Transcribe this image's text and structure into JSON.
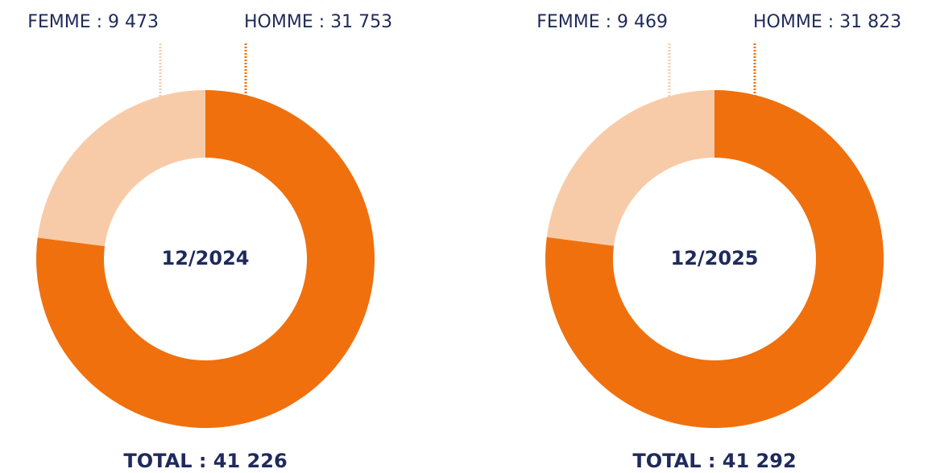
{
  "chart_data": [
    {
      "type": "donut",
      "center_label": "12/2024",
      "total_label": "TOTAL : 41 226",
      "values": [
        9473,
        31753
      ],
      "value_labels": [
        "FEMME : 9 473",
        "HOMME : 31 753"
      ],
      "colors": [
        "#f8cba8",
        "#f0700e"
      ]
    },
    {
      "type": "donut",
      "center_label": "12/2025",
      "total_label": "TOTAL : 41 292",
      "values": [
        9469,
        31823
      ],
      "value_labels": [
        "FEMME : 9 469",
        "HOMME : 31 823"
      ],
      "colors": [
        "#f8cba8",
        "#f0700e"
      ]
    }
  ]
}
